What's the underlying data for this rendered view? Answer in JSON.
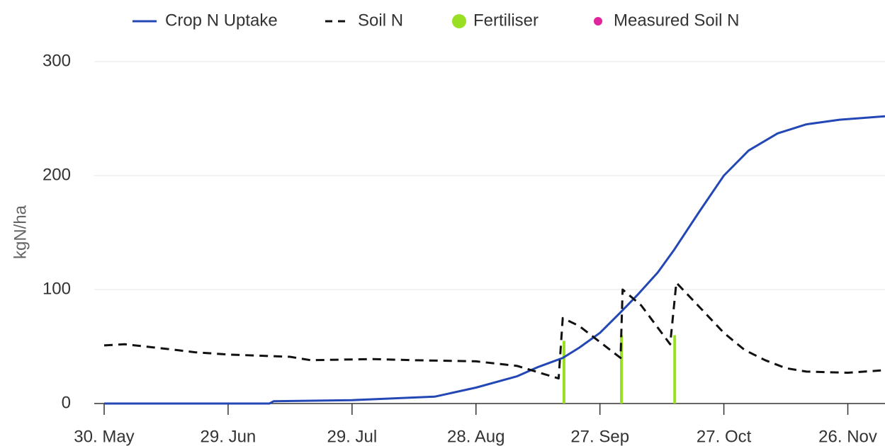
{
  "chart_data": {
    "type": "line",
    "y_label": "kgN/ha",
    "xlim": [
      -2.4,
      189
    ],
    "xticks": [
      {
        "value": 0,
        "label": "30. May"
      },
      {
        "value": 30,
        "label": "29. Jun"
      },
      {
        "value": 60,
        "label": "29. Jul"
      },
      {
        "value": 90,
        "label": "28. Aug"
      },
      {
        "value": 120,
        "label": "27. Sep"
      },
      {
        "value": 150,
        "label": "27. Oct"
      },
      {
        "value": 180,
        "label": "26. Nov"
      }
    ],
    "ylim": [
      0,
      300
    ],
    "yticks": [
      0,
      100,
      200,
      300
    ],
    "grid": true,
    "legend": "top",
    "series": [
      {
        "name": "Crop N Uptake",
        "type": "line",
        "color": "#2347b5",
        "dash": false,
        "x": [
          0,
          40,
          41,
          60,
          80,
          90,
          100,
          105,
          111,
          115,
          120,
          125,
          129,
          134,
          138,
          144,
          150,
          156,
          163,
          170,
          178,
          189
        ],
        "values": [
          0,
          0,
          2,
          3,
          6,
          14,
          24,
          32,
          40,
          49,
          62,
          80,
          95,
          115,
          135,
          168,
          200,
          222,
          237,
          245,
          249,
          252
        ]
      },
      {
        "name": "Soil N",
        "type": "line",
        "color": "#111111",
        "dash": true,
        "x": [
          0,
          5,
          15,
          22,
          30,
          45,
          50,
          65,
          75,
          90,
          100,
          110,
          111,
          115,
          120,
          125,
          125.5,
          130,
          137,
          138.5,
          144,
          150,
          155,
          160,
          165,
          170,
          180,
          188
        ],
        "values": [
          51,
          52,
          48,
          45,
          43,
          41,
          38,
          39,
          38,
          37,
          33,
          22,
          75,
          68,
          54,
          40,
          100,
          86,
          52,
          106,
          85,
          62,
          47,
          38,
          31,
          28,
          27,
          29
        ]
      },
      {
        "name": "Fertiliser",
        "type": "column",
        "color": "#99e024",
        "dash": false,
        "x": [
          111.3,
          125.2,
          138.1
        ],
        "values": [
          55,
          60,
          60
        ]
      },
      {
        "name": "Measured Soil N",
        "type": "scatter",
        "color": "#e0249e",
        "dash": false,
        "x": [],
        "values": []
      }
    ]
  }
}
